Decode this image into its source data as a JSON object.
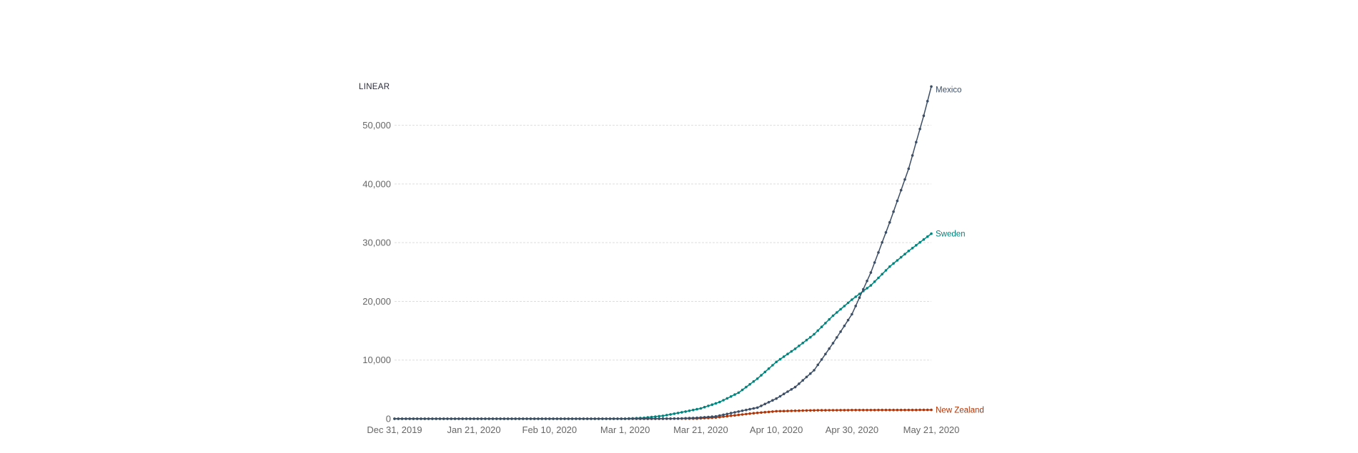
{
  "scale_toggle": {
    "label": "LINEAR"
  },
  "chart_data": {
    "type": "line",
    "title": "",
    "xlabel": "",
    "ylabel": "",
    "x_start": "Dec 31, 2019",
    "x_end": "May 21, 2020",
    "x_ticks": [
      "Dec 31, 2019",
      "Jan 21, 2020",
      "Feb 10, 2020",
      "Mar 1, 2020",
      "Mar 21, 2020",
      "Apr 10, 2020",
      "Apr 30, 2020",
      "May 21, 2020"
    ],
    "y_ticks": [
      0,
      10000,
      20000,
      30000,
      40000,
      50000
    ],
    "y_tick_labels": [
      "0",
      "10,000",
      "20,000",
      "30,000",
      "40,000",
      "50,000"
    ],
    "ylim": [
      0,
      57000
    ],
    "grid": true,
    "legend": "labels at line ends",
    "series": [
      {
        "name": "New Zealand",
        "color": "#b13507",
        "points": [
          [
            "Dec 31, 2019",
            0
          ],
          [
            "Feb 28, 2020",
            0
          ],
          [
            "Mar 10, 2020",
            5
          ],
          [
            "Mar 20, 2020",
            39
          ],
          [
            "Mar 25, 2020",
            205
          ],
          [
            "Mar 30, 2020",
            589
          ],
          [
            "Apr 4, 2020",
            950
          ],
          [
            "Apr 10, 2020",
            1283
          ],
          [
            "Apr 20, 2020",
            1440
          ],
          [
            "Apr 30, 2020",
            1479
          ],
          [
            "May 10, 2020",
            1494
          ],
          [
            "May 21, 2020",
            1504
          ]
        ]
      },
      {
        "name": "Sweden",
        "color": "#00847e",
        "points": [
          [
            "Dec 31, 2019",
            0
          ],
          [
            "Jan 31, 2020",
            1
          ],
          [
            "Feb 25, 2020",
            2
          ],
          [
            "Mar 1, 2020",
            14
          ],
          [
            "Mar 6, 2020",
            161
          ],
          [
            "Mar 11, 2020",
            500
          ],
          [
            "Mar 16, 2020",
            1100
          ],
          [
            "Mar 21, 2020",
            1763
          ],
          [
            "Mar 26, 2020",
            2840
          ],
          [
            "Mar 31, 2020",
            4435
          ],
          [
            "Apr 5, 2020",
            6830
          ],
          [
            "Apr 10, 2020",
            9685
          ],
          [
            "Apr 15, 2020",
            11927
          ],
          [
            "Apr 20, 2020",
            14385
          ],
          [
            "Apr 25, 2020",
            17567
          ],
          [
            "Apr 30, 2020",
            20302
          ],
          [
            "May 5, 2020",
            22721
          ],
          [
            "May 10, 2020",
            25921
          ],
          [
            "May 15, 2020",
            28582
          ],
          [
            "May 21, 2020",
            31523
          ]
        ]
      },
      {
        "name": "Mexico",
        "color": "#3c4e66",
        "points": [
          [
            "Dec 31, 2019",
            0
          ],
          [
            "Feb 28, 2020",
            0
          ],
          [
            "Mar 5, 2020",
            5
          ],
          [
            "Mar 10, 2020",
            7
          ],
          [
            "Mar 15, 2020",
            41
          ],
          [
            "Mar 20, 2020",
            164
          ],
          [
            "Mar 25, 2020",
            405
          ],
          [
            "Mar 30, 2020",
            1094
          ],
          [
            "Apr 5, 2020",
            1890
          ],
          [
            "Apr 10, 2020",
            3441
          ],
          [
            "Apr 15, 2020",
            5399
          ],
          [
            "Apr 20, 2020",
            8261
          ],
          [
            "Apr 25, 2020",
            12872
          ],
          [
            "Apr 30, 2020",
            17799
          ],
          [
            "May 5, 2020",
            24905
          ],
          [
            "May 10, 2020",
            33460
          ],
          [
            "May 15, 2020",
            42595
          ],
          [
            "May 19, 2020",
            51633
          ],
          [
            "May 21, 2020",
            56594
          ]
        ]
      }
    ]
  }
}
